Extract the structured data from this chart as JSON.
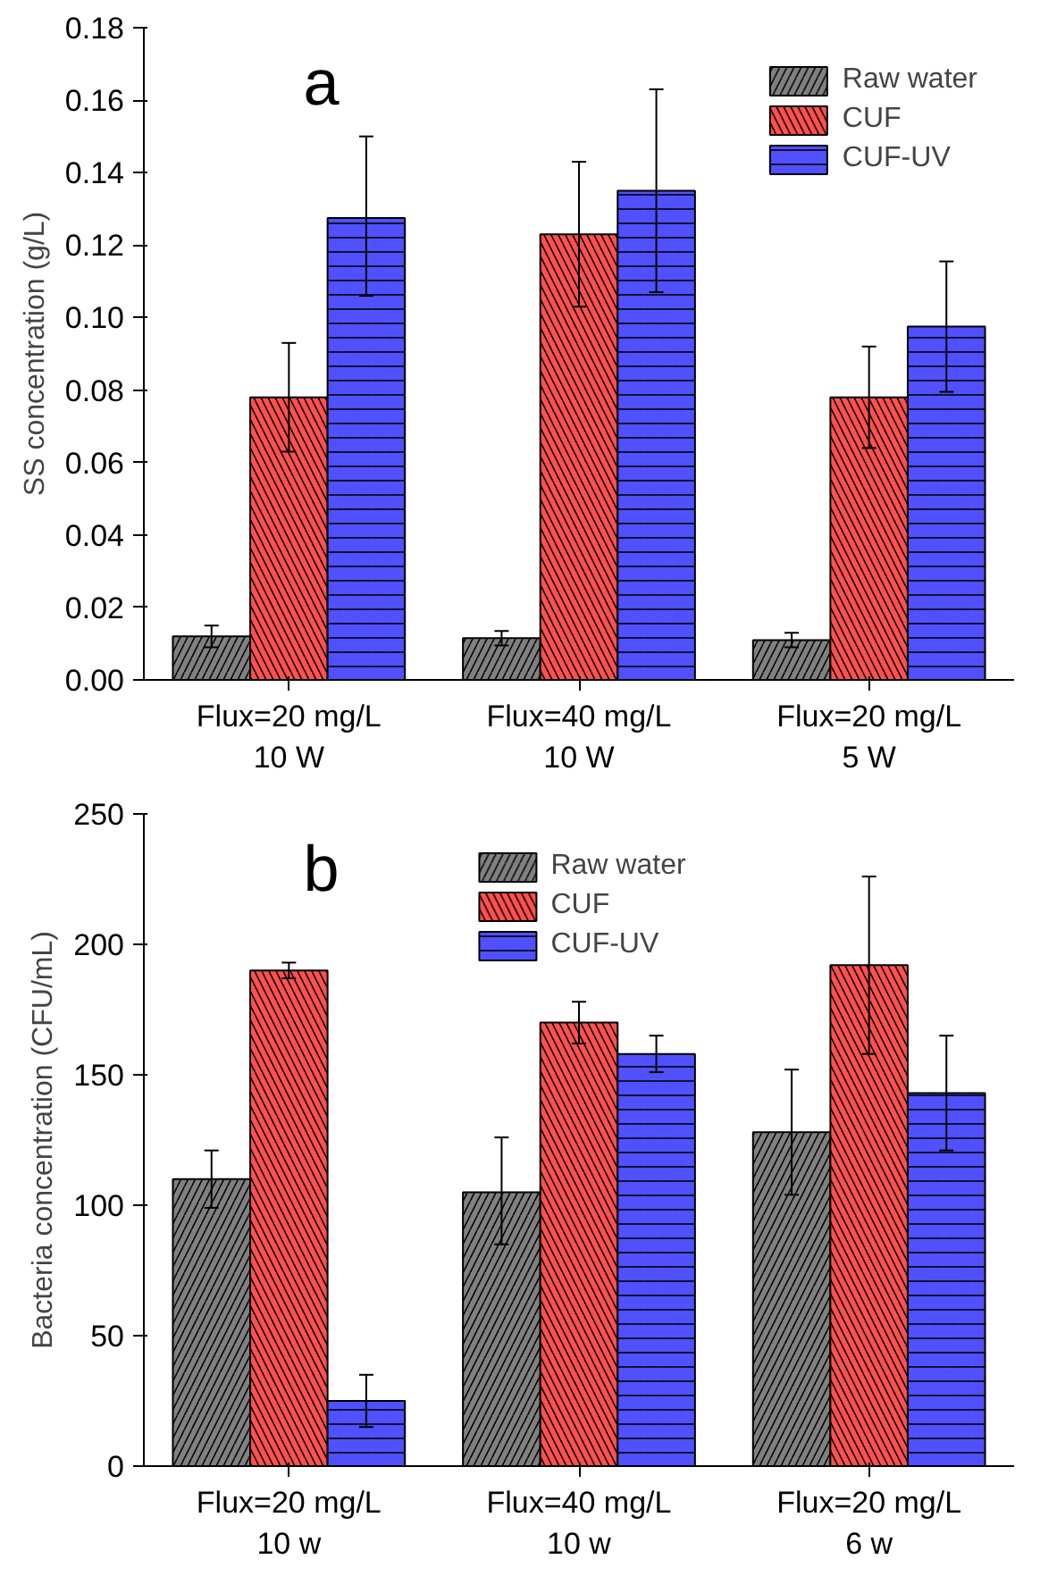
{
  "chart_data": [
    {
      "type": "bar",
      "ylabel": "SS concentration (g/L)",
      "annotations": [
        "a"
      ],
      "categories": [
        "Flux=20 mg/L\n10 W",
        "Flux=40 mg/L\n10 W",
        "Flux=20 mg/L\n5 W"
      ],
      "series": [
        {
          "name": "Raw water",
          "color": "#808080",
          "values": [
            0.012,
            0.0115,
            0.011
          ],
          "errors": [
            0.003,
            0.002,
            0.002
          ]
        },
        {
          "name": "CUF",
          "color": "#ff5050",
          "values": [
            0.078,
            0.123,
            0.078
          ],
          "errors": [
            0.015,
            0.02,
            0.014
          ]
        },
        {
          "name": "CUF-UV",
          "color": "#5050ff",
          "values": [
            0.1275,
            0.135,
            0.0975
          ],
          "errors": [
            [
              0.106,
              0.15
            ],
            0.028,
            0.018
          ]
        }
      ],
      "ylim": [
        0,
        0.18
      ],
      "yticks": [
        {
          "value": 0,
          "label": "0.00"
        },
        {
          "value": 0.02,
          "label": "0.02"
        },
        {
          "value": 0.04,
          "label": "0.04"
        },
        {
          "value": 0.06,
          "label": "0.06"
        },
        {
          "value": 0.08,
          "label": "0.08"
        },
        {
          "value": 0.1,
          "label": "0.10"
        },
        {
          "value": 0.12,
          "label": "0.12"
        },
        {
          "value": 0.14,
          "label": "0.14"
        },
        {
          "value": 0.16,
          "label": "0.16"
        },
        {
          "value": 0.18,
          "label": "0.18"
        }
      ],
      "legend": "top right"
    },
    {
      "type": "bar",
      "ylabel": "Bacteria concentration (CFU/mL)",
      "annotations": [
        "b"
      ],
      "categories": [
        "Flux=20 mg/L\n10 w",
        "Flux=40 mg/L\n10 w",
        "Flux=20 mg/L\n6 w"
      ],
      "series": [
        {
          "name": "Raw water",
          "color": "#808080",
          "values": [
            110,
            105,
            128
          ],
          "errors": [
            11,
            [
              85,
              126
            ],
            24
          ]
        },
        {
          "name": "CUF",
          "color": "#ff5050",
          "values": [
            190,
            170,
            192
          ],
          "errors": [
            3,
            8,
            34
          ]
        },
        {
          "name": "CUF-UV",
          "color": "#5050ff",
          "values": [
            25,
            158,
            143
          ],
          "errors": [
            10,
            7,
            [
              121,
              165
            ]
          ]
        }
      ],
      "ylim": [
        0,
        250
      ],
      "yticks": [
        0,
        50,
        100,
        150,
        200,
        250
      ],
      "legend": "top"
    }
  ]
}
